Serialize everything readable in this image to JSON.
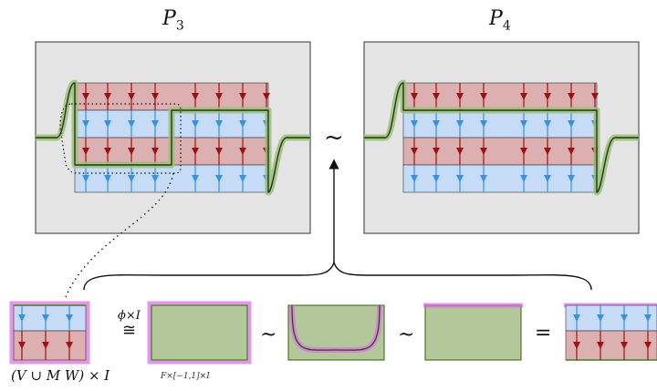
{
  "labels": {
    "p3_letter": "P",
    "p3_index": "3",
    "p4_letter": "P",
    "p4_index": "4",
    "tilde_main": "~",
    "bottom_left": "(V ∪ M W) × I",
    "phi_map": "ϕ×I",
    "congruent": "≅",
    "small_caption": "F×[−1,1]×I",
    "tilde_1": "~",
    "tilde_2": "~",
    "equals": "="
  },
  "colors": {
    "panel_bg": "#e5e5e5",
    "red": "#dcb0b0",
    "red_line": "#a01010",
    "blue": "#c6dbf5",
    "blue_line": "#3b8fe0",
    "green": "#b4c79a",
    "green_line": "#4a7a25",
    "green_halo": "#9cc07a",
    "purple": "#d66ce0",
    "dark": "#1a1a1a"
  }
}
